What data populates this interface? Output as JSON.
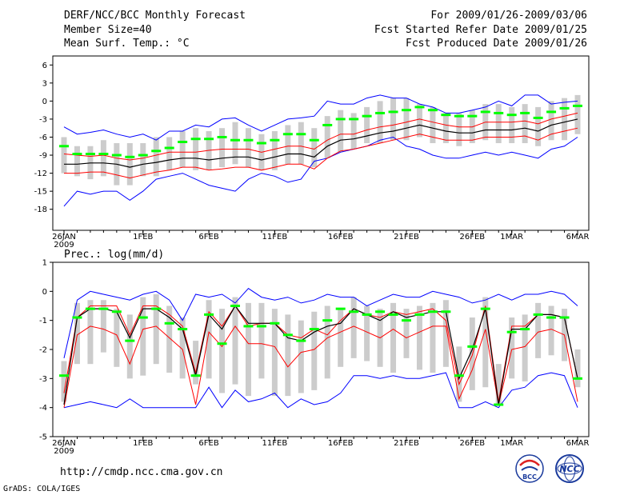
{
  "header": {
    "title": "DERF/NCC/BCC Monthly Forecast",
    "member_size": "Member Size=40",
    "variable": "Mean Surf. Temp.: °C",
    "period": "For 2009/01/26-2009/03/06",
    "start_date": "Fcst Started Refer Date 2009/01/25",
    "produced_date": "Fcst Produced Date 2009/01/26"
  },
  "footer": {
    "url": "http://cmdp.ncc.cma.gov.cn",
    "credit": "GrADS: COLA/IGES",
    "logo_bcc": "BCC",
    "logo_ncc": "NCC"
  },
  "colors": {
    "envelope": "#0000ff",
    "spread": "#ff0000",
    "mean": "#000000",
    "observed": "#00ff00",
    "bar": "#cccccc"
  },
  "chart_data": [
    {
      "type": "line",
      "title": "Mean Surf. Temp.: °C",
      "x_tick_labels": [
        "26JAN",
        "1FEB",
        "6FEB",
        "11FEB",
        "16FEB",
        "21FEB",
        "26FEB",
        "1MAR",
        "6MAR"
      ],
      "x_tick_days": [
        0,
        6,
        11,
        16,
        21,
        26,
        31,
        34,
        39
      ],
      "x_year_label": "2009",
      "yticks": [
        6,
        3,
        0,
        -3,
        -6,
        -9,
        -12,
        -15,
        -18
      ],
      "ylim": [
        -21.5,
        7.5
      ],
      "days": 40,
      "series": [
        {
          "name": "max",
          "values": [
            -4.3,
            -5.5,
            -5.2,
            -4.8,
            -5.5,
            -6.0,
            -5.5,
            -6.5,
            -5.0,
            -5.0,
            -4.0,
            -4.3,
            -3.0,
            -2.8,
            -4.0,
            -5.0,
            -4.0,
            -3.0,
            -2.8,
            -2.5,
            0.0,
            -0.5,
            -0.5,
            0.5,
            1.0,
            0.5,
            0.5,
            -0.5,
            -1.0,
            -2.0,
            -2.0,
            -1.5,
            -1.0,
            0.0,
            -0.8,
            1.0,
            1.0,
            -0.5,
            -0.2,
            0.0
          ]
        },
        {
          "name": "upper",
          "values": [
            -8.8,
            -9.0,
            -9.2,
            -9.0,
            -9.5,
            -9.8,
            -9.5,
            -9.0,
            -8.5,
            -8.5,
            -8.5,
            -8.2,
            -8.0,
            -8.0,
            -8.0,
            -8.5,
            -8.0,
            -7.5,
            -7.5,
            -8.0,
            -6.5,
            -5.5,
            -5.5,
            -4.8,
            -4.3,
            -4.0,
            -3.5,
            -3.0,
            -3.5,
            -4.0,
            -4.3,
            -4.3,
            -3.5,
            -3.5,
            -3.5,
            -3.3,
            -3.8,
            -3.0,
            -2.5,
            -2.0
          ]
        },
        {
          "name": "mean",
          "values": [
            -10.5,
            -10.5,
            -10.3,
            -10.3,
            -10.5,
            -11.0,
            -10.5,
            -10.2,
            -9.8,
            -9.5,
            -9.5,
            -9.8,
            -9.5,
            -9.3,
            -9.3,
            -9.8,
            -9.3,
            -8.8,
            -8.8,
            -9.3,
            -7.5,
            -6.5,
            -6.3,
            -5.8,
            -5.3,
            -5.0,
            -4.5,
            -4.0,
            -4.5,
            -5.0,
            -5.3,
            -5.3,
            -4.8,
            -4.8,
            -4.8,
            -4.5,
            -5.0,
            -4.0,
            -3.5,
            -3.0
          ]
        },
        {
          "name": "lower",
          "values": [
            -12.0,
            -12.0,
            -11.8,
            -11.8,
            -12.3,
            -12.8,
            -12.3,
            -11.8,
            -11.5,
            -11.0,
            -11.0,
            -11.5,
            -11.3,
            -11.0,
            -11.0,
            -11.5,
            -11.0,
            -10.5,
            -10.5,
            -11.3,
            -9.5,
            -8.3,
            -8.0,
            -7.5,
            -7.0,
            -6.5,
            -6.0,
            -5.5,
            -6.0,
            -6.5,
            -6.5,
            -6.5,
            -6.0,
            -6.0,
            -6.0,
            -5.8,
            -6.5,
            -5.5,
            -5.0,
            -4.5
          ]
        },
        {
          "name": "min",
          "values": [
            -17.5,
            -15.0,
            -15.5,
            -15.0,
            -15.0,
            -16.5,
            -15.0,
            -13.0,
            -12.5,
            -12.0,
            -13.0,
            -14.0,
            -14.5,
            -15.0,
            -13.0,
            -12.0,
            -12.5,
            -13.5,
            -13.0,
            -10.0,
            -9.5,
            -8.5,
            -8.0,
            -7.5,
            -6.5,
            -6.0,
            -7.5,
            -8.0,
            -9.0,
            -9.5,
            -9.5,
            -9.0,
            -8.5,
            -9.0,
            -8.5,
            -9.0,
            -9.5,
            -8.0,
            -7.5,
            -6.0
          ]
        },
        {
          "name": "observed",
          "values": [
            -7.5,
            -8.8,
            -8.8,
            -8.8,
            -9.0,
            -9.3,
            -9.0,
            -8.3,
            -7.8,
            -6.8,
            -6.3,
            -6.3,
            -6.0,
            -6.5,
            -6.5,
            -7.0,
            -6.5,
            -5.5,
            -5.5,
            -6.5,
            -4.0,
            -3.0,
            -3.0,
            -2.5,
            -2.0,
            -1.8,
            -1.5,
            -1.0,
            -1.5,
            -2.3,
            -2.5,
            -2.5,
            -1.8,
            -2.0,
            -2.3,
            -2.0,
            -2.8,
            -1.8,
            -1.2,
            -0.8
          ]
        },
        {
          "name": "bar_top",
          "values": [
            -6.0,
            -7.5,
            -7.5,
            -6.5,
            -7.0,
            -7.0,
            -7.0,
            -6.0,
            -6.0,
            -5.0,
            -4.5,
            -5.0,
            -4.5,
            -3.5,
            -4.5,
            -5.5,
            -5.0,
            -4.0,
            -3.5,
            -4.5,
            -2.5,
            -1.5,
            -2.0,
            -1.0,
            0.0,
            0.5,
            0.5,
            -0.5,
            -1.0,
            -2.0,
            -2.0,
            -1.5,
            -0.5,
            -0.5,
            -1.0,
            -0.5,
            -1.0,
            0.0,
            0.5,
            1.0
          ]
        },
        {
          "name": "bar_bottom",
          "values": [
            -12.0,
            -12.5,
            -13.0,
            -12.5,
            -14.0,
            -14.0,
            -12.5,
            -12.5,
            -11.5,
            -11.0,
            -11.5,
            -11.5,
            -11.0,
            -10.5,
            -11.0,
            -11.5,
            -11.5,
            -10.5,
            -10.5,
            -11.0,
            -9.5,
            -8.5,
            -8.0,
            -7.0,
            -7.0,
            -6.5,
            -6.5,
            -6.0,
            -7.0,
            -7.0,
            -7.5,
            -7.0,
            -6.5,
            -7.0,
            -7.0,
            -7.0,
            -7.5,
            -6.5,
            -6.5,
            -5.5
          ]
        }
      ]
    },
    {
      "type": "line",
      "title": "Prec.: log(mm/d)",
      "x_tick_labels": [
        "26JAN",
        "1FEB",
        "6FEB",
        "11FEB",
        "16FEB",
        "21FEB",
        "26FEB",
        "1MAR",
        "6MAR"
      ],
      "x_tick_days": [
        0,
        6,
        11,
        16,
        21,
        26,
        31,
        34,
        39
      ],
      "x_year_label": "2009",
      "yticks": [
        1,
        0,
        -1,
        -2,
        -3,
        -4,
        -5
      ],
      "ylim": [
        -5,
        1
      ],
      "days": 40,
      "series": [
        {
          "name": "max",
          "values": [
            -2.3,
            -0.3,
            0.0,
            -0.1,
            -0.2,
            -0.3,
            -0.1,
            0.0,
            -0.3,
            -1.0,
            -0.1,
            -0.2,
            -0.1,
            -0.4,
            0.1,
            -0.2,
            -0.3,
            -0.2,
            -0.4,
            -0.3,
            -0.1,
            -0.2,
            -0.2,
            -0.5,
            -0.3,
            -0.1,
            -0.2,
            -0.2,
            0.0,
            -0.1,
            -0.2,
            -0.4,
            -0.3,
            -0.1,
            -0.3,
            -0.1,
            -0.1,
            0.0,
            -0.1,
            -0.5
          ]
        },
        {
          "name": "upper",
          "values": [
            -3.5,
            -0.9,
            -0.5,
            -0.5,
            -0.5,
            -1.5,
            -0.5,
            -0.5,
            -0.8,
            -1.2,
            -2.8,
            -0.7,
            -1.2,
            -0.5,
            -1.2,
            -1.1,
            -1.1,
            -1.5,
            -1.6,
            -1.3,
            -1.5,
            -1.0,
            -0.6,
            -0.8,
            -0.9,
            -0.7,
            -0.8,
            -0.7,
            -0.6,
            -1.0,
            -3.2,
            -2.2,
            -0.5,
            -3.8,
            -1.2,
            -1.2,
            -0.8,
            -0.8,
            -0.9,
            -3.0
          ]
        },
        {
          "name": "mean",
          "values": [
            -3.9,
            -0.9,
            -0.6,
            -0.6,
            -0.7,
            -1.6,
            -0.6,
            -0.6,
            -0.9,
            -1.3,
            -2.9,
            -0.8,
            -1.3,
            -0.5,
            -1.1,
            -1.1,
            -1.1,
            -1.6,
            -1.7,
            -1.4,
            -1.2,
            -1.1,
            -0.6,
            -0.8,
            -1.0,
            -0.7,
            -0.9,
            -0.8,
            -0.7,
            -0.7,
            -3.0,
            -2.0,
            -0.6,
            -3.9,
            -1.3,
            -1.3,
            -0.8,
            -0.8,
            -0.9,
            -3.0
          ]
        },
        {
          "name": "lower",
          "values": [
            -4.0,
            -1.5,
            -1.2,
            -1.3,
            -1.5,
            -2.5,
            -1.3,
            -1.2,
            -1.6,
            -2.0,
            -3.9,
            -1.4,
            -1.9,
            -1.2,
            -1.8,
            -1.8,
            -1.9,
            -2.6,
            -2.1,
            -2.0,
            -1.6,
            -1.4,
            -1.2,
            -1.4,
            -1.6,
            -1.3,
            -1.6,
            -1.4,
            -1.2,
            -1.2,
            -3.7,
            -2.7,
            -1.3,
            -3.9,
            -2.0,
            -1.9,
            -1.4,
            -1.3,
            -1.5,
            -3.8
          ]
        },
        {
          "name": "min",
          "values": [
            -4.0,
            -3.9,
            -3.8,
            -3.9,
            -4.0,
            -3.7,
            -4.0,
            -4.0,
            -4.0,
            -4.0,
            -4.0,
            -3.3,
            -4.0,
            -3.4,
            -3.8,
            -3.7,
            -3.5,
            -4.0,
            -3.7,
            -3.9,
            -3.8,
            -3.5,
            -2.9,
            -2.9,
            -3.0,
            -2.9,
            -3.0,
            -3.0,
            -2.9,
            -2.8,
            -4.0,
            -4.0,
            -3.8,
            -4.0,
            -3.4,
            -3.3,
            -2.9,
            -2.8,
            -2.9,
            -4.0
          ]
        },
        {
          "name": "observed",
          "values": [
            -2.9,
            -0.9,
            -0.6,
            -0.6,
            -0.7,
            -1.7,
            -0.9,
            -0.6,
            -1.1,
            -1.3,
            -2.9,
            -0.8,
            -1.8,
            -0.5,
            -1.2,
            -1.2,
            -1.1,
            -1.5,
            -1.7,
            -1.3,
            -1.0,
            -0.6,
            -0.7,
            -0.8,
            -0.7,
            -0.8,
            -1.0,
            -0.8,
            -0.7,
            -0.7,
            -2.9,
            -1.9,
            -0.6,
            -3.9,
            -1.4,
            -1.3,
            -0.8,
            -0.9,
            -0.9,
            -3.0
          ]
        },
        {
          "name": "bar_top",
          "values": [
            -2.4,
            -0.4,
            -0.3,
            -0.3,
            -0.6,
            -0.8,
            -0.2,
            -0.1,
            -0.5,
            -0.9,
            -1.7,
            -0.3,
            -0.6,
            -0.2,
            -0.4,
            -0.4,
            -0.6,
            -0.8,
            -1.0,
            -0.7,
            -0.5,
            -0.6,
            -0.2,
            -0.5,
            -0.6,
            -0.4,
            -0.6,
            -0.5,
            -0.4,
            -0.3,
            -1.9,
            -0.9,
            -0.2,
            -2.5,
            -0.9,
            -0.8,
            -0.4,
            -0.5,
            -0.6,
            -2.0
          ]
        },
        {
          "name": "bar_bottom",
          "values": [
            -3.8,
            -2.5,
            -2.5,
            -2.1,
            -2.6,
            -3.0,
            -2.9,
            -2.5,
            -2.8,
            -3.0,
            -3.2,
            -3.0,
            -3.5,
            -3.2,
            -3.6,
            -3.0,
            -3.6,
            -3.6,
            -3.5,
            -3.4,
            -3.0,
            -2.6,
            -2.3,
            -2.4,
            -2.6,
            -2.8,
            -2.3,
            -2.7,
            -2.8,
            -2.6,
            -3.8,
            -3.4,
            -3.3,
            -3.9,
            -3.0,
            -3.1,
            -2.3,
            -2.2,
            -2.4,
            -3.3
          ]
        }
      ]
    }
  ]
}
